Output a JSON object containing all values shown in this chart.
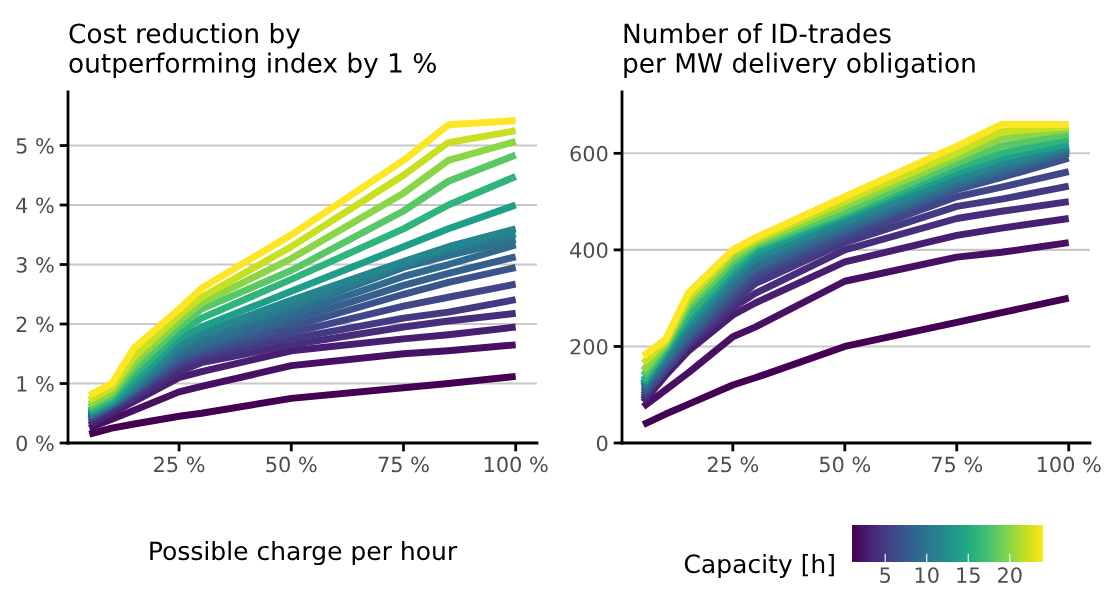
{
  "chart_data": [
    {
      "type": "line",
      "title": "Cost reduction by\noutperforming index by 1 %",
      "xlabel": "Possible charge per hour",
      "x": [
        5,
        10,
        15,
        25,
        30,
        50,
        75,
        85,
        100
      ],
      "xlim": [
        0.25,
        104.75
      ],
      "ylim": [
        0,
        5.9
      ],
      "xticks": [
        {
          "value": 25,
          "label": "25 %"
        },
        {
          "value": 50,
          "label": "50 %"
        },
        {
          "value": 75,
          "label": "75 %"
        },
        {
          "value": 100,
          "label": "100 %"
        }
      ],
      "yticks": [
        {
          "value": 0,
          "label": "0 %"
        },
        {
          "value": 1,
          "label": "1 %"
        },
        {
          "value": 2,
          "label": "2 %"
        },
        {
          "value": 3,
          "label": "3 %"
        },
        {
          "value": 4,
          "label": "4 %"
        },
        {
          "value": 5,
          "label": "5 %"
        }
      ],
      "grid": "y",
      "legend": false,
      "line_style": "solid",
      "marker": "none",
      "series": [
        {
          "color": "#440154",
          "values": [
            0.15,
            0.25,
            0.32,
            0.45,
            0.5,
            0.75,
            0.93,
            1.0,
            1.12
          ]
        },
        {
          "color": "#471063",
          "values": [
            0.25,
            0.4,
            0.55,
            0.86,
            0.95,
            1.3,
            1.5,
            1.55,
            1.65
          ]
        },
        {
          "color": "#481f70",
          "values": [
            0.3,
            0.5,
            0.7,
            1.1,
            1.2,
            1.55,
            1.75,
            1.82,
            1.95
          ]
        },
        {
          "color": "#472d7b",
          "values": [
            0.35,
            0.55,
            0.75,
            1.2,
            1.35,
            1.65,
            1.95,
            2.05,
            2.18
          ]
        },
        {
          "color": "#443a83",
          "values": [
            0.4,
            0.6,
            0.8,
            1.3,
            1.45,
            1.75,
            2.1,
            2.2,
            2.41
          ]
        },
        {
          "color": "#404688",
          "values": [
            0.4,
            0.62,
            0.85,
            1.35,
            1.5,
            1.85,
            2.3,
            2.45,
            2.67
          ]
        },
        {
          "color": "#3b528b",
          "values": [
            0.42,
            0.62,
            0.85,
            1.4,
            1.55,
            1.95,
            2.5,
            2.7,
            2.95
          ]
        },
        {
          "color": "#355f8d",
          "values": [
            0.45,
            0.65,
            0.9,
            1.45,
            1.6,
            2.05,
            2.65,
            2.85,
            3.13
          ]
        },
        {
          "color": "#306a8e",
          "values": [
            0.45,
            0.65,
            0.9,
            1.5,
            1.65,
            2.15,
            2.8,
            3.0,
            3.33
          ]
        },
        {
          "color": "#2c728e",
          "values": [
            0.47,
            0.65,
            0.92,
            1.55,
            1.7,
            2.25,
            2.95,
            3.15,
            3.42
          ]
        },
        {
          "color": "#287d8e",
          "values": [
            0.48,
            0.66,
            0.95,
            1.6,
            1.8,
            2.3,
            3.0,
            3.25,
            3.51
          ]
        },
        {
          "color": "#24868e",
          "values": [
            0.5,
            0.68,
            0.98,
            1.65,
            1.85,
            2.4,
            3.05,
            3.3,
            3.6
          ]
        },
        {
          "color": "#1f9e89",
          "values": [
            0.52,
            0.7,
            1.05,
            1.75,
            1.95,
            2.55,
            3.3,
            3.6,
            4.0
          ]
        },
        {
          "color": "#2fb47c",
          "values": [
            0.55,
            0.75,
            1.15,
            1.85,
            2.1,
            2.75,
            3.6,
            4.0,
            4.48
          ]
        },
        {
          "color": "#58c765",
          "values": [
            0.6,
            0.8,
            1.25,
            1.95,
            2.25,
            2.9,
            3.9,
            4.4,
            4.84
          ]
        },
        {
          "color": "#8bd646",
          "values": [
            0.65,
            0.85,
            1.35,
            2.05,
            2.35,
            3.1,
            4.2,
            4.75,
            5.07
          ]
        },
        {
          "color": "#c8e020",
          "values": [
            0.72,
            0.92,
            1.45,
            2.15,
            2.45,
            3.3,
            4.5,
            5.05,
            5.25
          ]
        },
        {
          "color": "#fde725",
          "values": [
            0.8,
            1.0,
            1.6,
            2.25,
            2.6,
            3.5,
            4.75,
            5.35,
            5.42
          ]
        }
      ]
    },
    {
      "type": "line",
      "title": "Number of ID-trades\nper MW delivery obligation",
      "clabel": "Capacity [h]",
      "clim": [
        1,
        24
      ],
      "cticks": [
        5,
        10,
        15,
        20
      ],
      "x": [
        5,
        10,
        15,
        25,
        30,
        50,
        75,
        85,
        100
      ],
      "xlim": [
        0.25,
        104.75
      ],
      "ylim": [
        0,
        727
      ],
      "xticks": [
        {
          "value": 25,
          "label": "25 %"
        },
        {
          "value": 50,
          "label": "50 %"
        },
        {
          "value": 75,
          "label": "75 %"
        },
        {
          "value": 100,
          "label": "100 %"
        }
      ],
      "yticks": [
        0,
        200,
        400,
        600
      ],
      "grid": "y",
      "legend": false,
      "line_style": "solid",
      "marker": "none",
      "series": [
        {
          "color": "#440154",
          "values": [
            38,
            60,
            80,
            120,
            135,
            200,
            250,
            270,
            300
          ]
        },
        {
          "color": "#471063",
          "values": [
            75,
            110,
            145,
            220,
            240,
            335,
            385,
            395,
            415
          ]
        },
        {
          "color": "#481f70",
          "values": [
            85,
            140,
            190,
            265,
            290,
            375,
            430,
            445,
            465
          ]
        },
        {
          "color": "#472d7b",
          "values": [
            90,
            150,
            200,
            280,
            310,
            400,
            465,
            480,
            500
          ]
        },
        {
          "color": "#443a83",
          "values": [
            95,
            150,
            205,
            290,
            330,
            415,
            490,
            505,
            532
          ]
        },
        {
          "color": "#404688",
          "values": [
            100,
            155,
            210,
            300,
            345,
            425,
            510,
            530,
            562
          ]
        },
        {
          "color": "#3b528b",
          "values": [
            105,
            160,
            215,
            310,
            355,
            435,
            525,
            550,
            590
          ]
        },
        {
          "color": "#355f8d",
          "values": [
            110,
            165,
            220,
            320,
            360,
            440,
            530,
            560,
            600
          ]
        },
        {
          "color": "#306a8e",
          "values": [
            115,
            170,
            225,
            325,
            365,
            445,
            535,
            565,
            605
          ]
        },
        {
          "color": "#2c728e",
          "values": [
            118,
            175,
            235,
            335,
            375,
            450,
            540,
            570,
            610
          ]
        },
        {
          "color": "#287d8e",
          "values": [
            120,
            180,
            240,
            340,
            380,
            455,
            545,
            575,
            612
          ]
        },
        {
          "color": "#24868e",
          "values": [
            122,
            185,
            245,
            345,
            385,
            460,
            550,
            580,
            615
          ]
        },
        {
          "color": "#1f9e89",
          "values": [
            125,
            190,
            255,
            355,
            395,
            470,
            560,
            590,
            620
          ]
        },
        {
          "color": "#2fb47c",
          "values": [
            130,
            195,
            265,
            365,
            405,
            475,
            570,
            600,
            630
          ]
        },
        {
          "color": "#58c765",
          "values": [
            140,
            200,
            280,
            375,
            410,
            480,
            580,
            615,
            640
          ]
        },
        {
          "color": "#8bd646",
          "values": [
            150,
            205,
            290,
            385,
            415,
            490,
            590,
            630,
            650
          ]
        },
        {
          "color": "#c8e020",
          "values": [
            165,
            210,
            300,
            395,
            420,
            500,
            600,
            645,
            655
          ]
        },
        {
          "color": "#fde725",
          "values": [
            180,
            215,
            310,
            400,
            425,
            510,
            615,
            660,
            660
          ]
        }
      ]
    }
  ]
}
